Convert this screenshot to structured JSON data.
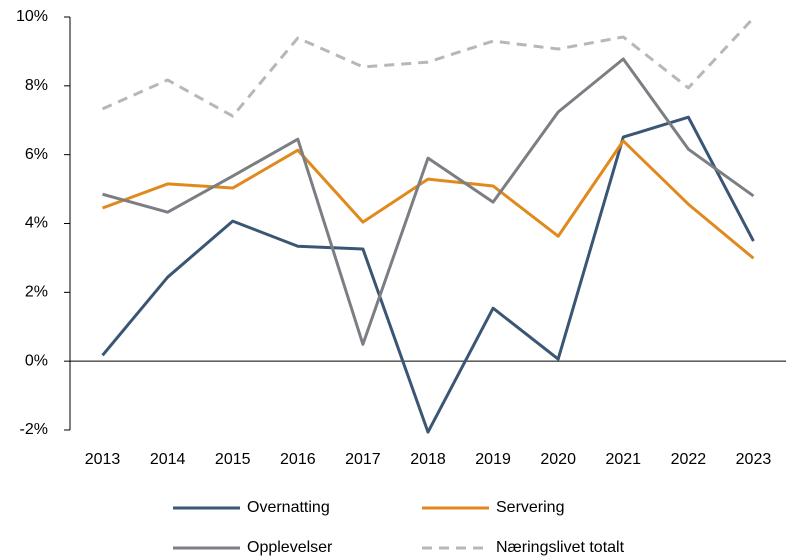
{
  "chart_data": {
    "type": "line",
    "categories": [
      "2013",
      "2014",
      "2015",
      "2016",
      "2017",
      "2018",
      "2019",
      "2020",
      "2021",
      "2022",
      "2023"
    ],
    "series": [
      {
        "name": "Overnatting",
        "color": "#3a5674",
        "values": [
          0.17,
          2.44,
          4.07,
          3.34,
          3.26,
          -2.06,
          1.54,
          0.06,
          6.51,
          7.09,
          3.49
        ]
      },
      {
        "name": "Servering",
        "color": "#e08a1e",
        "values": [
          4.45,
          5.15,
          5.03,
          6.13,
          4.04,
          5.29,
          5.09,
          3.63,
          6.4,
          4.56,
          2.99
        ]
      },
      {
        "name": "Opplevelser",
        "color": "#7b7f84",
        "values": [
          4.85,
          4.33,
          5.38,
          6.45,
          0.49,
          5.9,
          4.62,
          7.24,
          8.78,
          6.16,
          4.8
        ]
      },
      {
        "name": "Næringslivet totalt",
        "color": "#b4b8bc",
        "dashed": true,
        "values": [
          7.33,
          8.17,
          7.12,
          9.39,
          8.55,
          8.69,
          9.3,
          9.07,
          9.42,
          7.94,
          9.97
        ]
      }
    ],
    "ylim": [
      -2,
      10
    ],
    "yticks": [
      {
        "value": -2,
        "label": "-2%"
      },
      {
        "value": 0,
        "label": "0%"
      },
      {
        "value": 2,
        "label": "2%"
      },
      {
        "value": 4,
        "label": "4%"
      },
      {
        "value": 6,
        "label": "6%"
      },
      {
        "value": 8,
        "label": "8%"
      },
      {
        "value": 10,
        "label": "10%"
      }
    ],
    "legend": "bottom"
  }
}
